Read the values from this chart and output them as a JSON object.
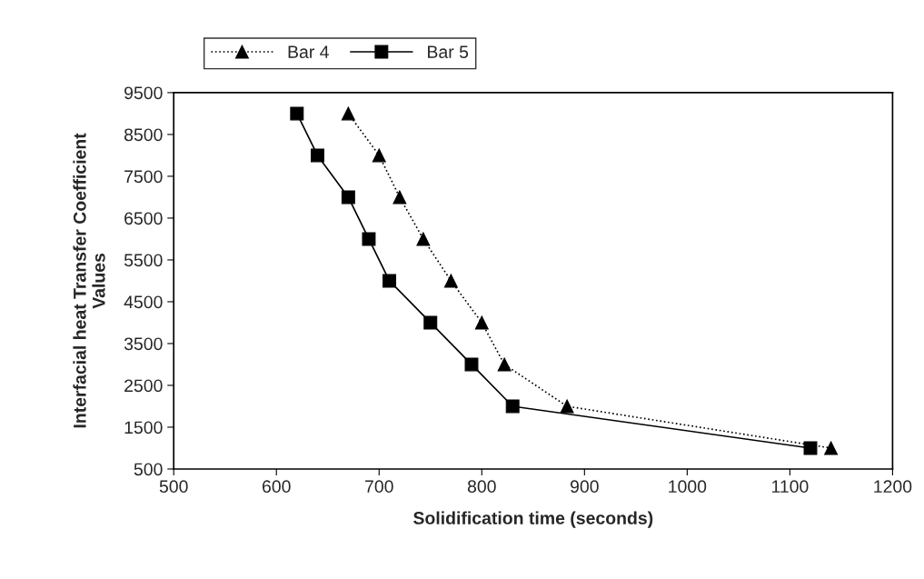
{
  "chart_data": {
    "type": "line",
    "xlabel": "Solidification time (seconds)",
    "ylabel": "Interfacial heat Transfer Coefficient\nValues",
    "series": [
      {
        "name": "Bar 4",
        "color": "#000000",
        "marker": "triangle",
        "line_style": "dotted",
        "x": [
          670,
          700,
          720,
          743,
          770,
          800,
          822,
          883,
          1140
        ],
        "values": [
          9000,
          8000,
          7000,
          6000,
          5000,
          4000,
          3000,
          2000,
          1000
        ]
      },
      {
        "name": "Bar 5",
        "color": "#000000",
        "marker": "square",
        "line_style": "solid",
        "x": [
          620,
          640,
          670,
          690,
          710,
          750,
          790,
          830,
          1120
        ],
        "values": [
          9000,
          8000,
          7000,
          6000,
          5000,
          4000,
          3000,
          2000,
          1000
        ]
      }
    ],
    "xlim": [
      500,
      1200
    ],
    "xticks": [
      500,
      600,
      700,
      800,
      900,
      1000,
      1100,
      1200
    ],
    "ylim": [
      500,
      9500
    ],
    "yticks": [
      500,
      1500,
      2500,
      3500,
      4500,
      5500,
      6500,
      7500,
      8500,
      9500
    ],
    "grid": false,
    "legend": "top"
  }
}
